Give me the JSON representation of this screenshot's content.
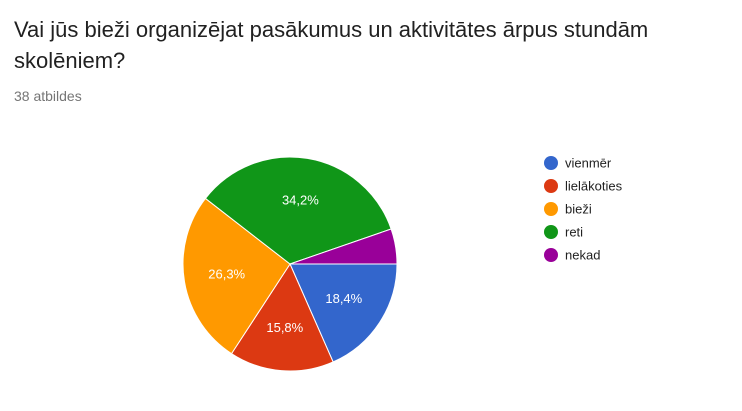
{
  "question": {
    "title": "Vai jūs bieži organizējat pasākumus un aktivitātes ārpus stundām skolēniem?",
    "response_count": "38 atbildes"
  },
  "chart_data": {
    "type": "pie",
    "title": "Vai jūs bieži organizējat pasākumus un aktivitātes ārpus stundām skolēniem?",
    "subtitle": "38 atbildes",
    "legend_position": "right",
    "slices": [
      {
        "name": "vienmēr",
        "value": 18.4,
        "label": "18,4%",
        "color": "#3366cc"
      },
      {
        "name": "lielākoties",
        "value": 15.8,
        "label": "15,8%",
        "color": "#dc3912"
      },
      {
        "name": "bieži",
        "value": 26.3,
        "label": "26,3%",
        "color": "#ff9900"
      },
      {
        "name": "reti",
        "value": 34.2,
        "label": "34,2%",
        "color": "#109618"
      },
      {
        "name": "nekad",
        "value": 5.3,
        "label": "",
        "color": "#990099"
      }
    ]
  }
}
